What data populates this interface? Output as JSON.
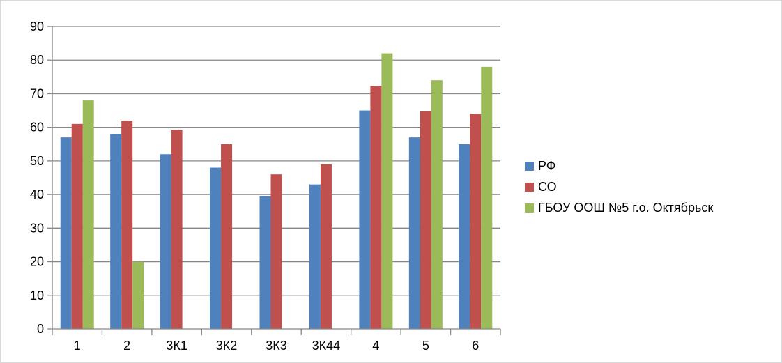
{
  "chart_data": {
    "type": "bar",
    "title": "",
    "xlabel": "",
    "ylabel": "",
    "ylim": [
      0,
      90
    ],
    "yticks": [
      0,
      10,
      20,
      30,
      40,
      50,
      60,
      70,
      80,
      90
    ],
    "grid": true,
    "legend_position": "right",
    "categories": [
      "1",
      "2",
      "3К1",
      "3К2",
      "3К3",
      "3К44",
      "4",
      "5",
      "6"
    ],
    "series": [
      {
        "name": "РФ",
        "color": "#4F81BD",
        "values": [
          57,
          58,
          52,
          48,
          39.5,
          43,
          65,
          57,
          55
        ]
      },
      {
        "name": "СО",
        "color": "#C0504D",
        "values": [
          61,
          62,
          59.3,
          55,
          46,
          49,
          72.3,
          64.7,
          64
        ]
      },
      {
        "name": "ГБОУ ООШ №5 г.о. Октябрьск",
        "color": "#9BBB59",
        "values": [
          68,
          20,
          null,
          null,
          null,
          null,
          82,
          74,
          78
        ]
      }
    ]
  }
}
